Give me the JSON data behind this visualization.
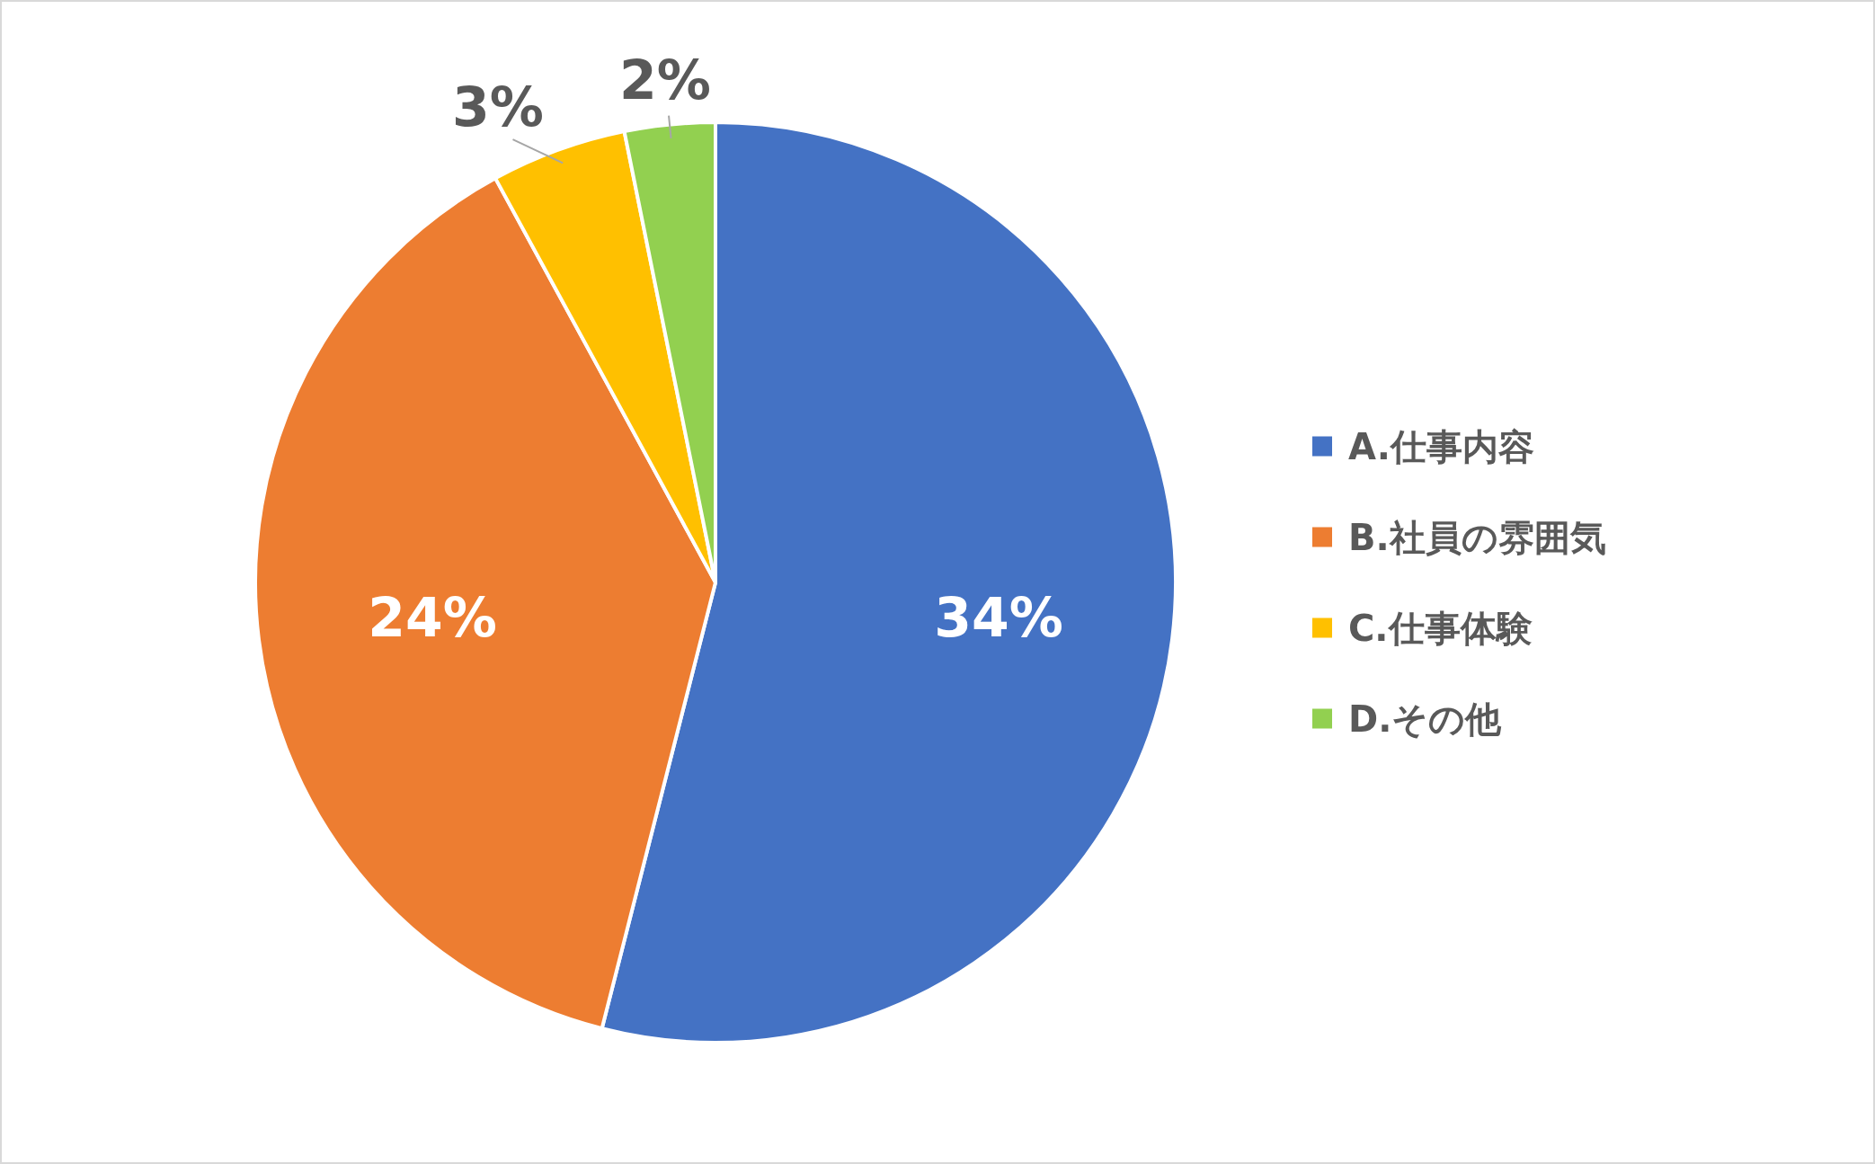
{
  "chart_data": {
    "type": "pie",
    "categories": [
      "A.仕事内容",
      "B.社員の雰囲気",
      "C.仕事体験",
      "D.その他"
    ],
    "values": [
      34,
      24,
      3,
      2
    ],
    "colors": [
      "#4472c4",
      "#ed7d31",
      "#ffc000",
      "#92d050"
    ],
    "value_labels": [
      "34%",
      "24%",
      "3%",
      "2%"
    ],
    "legend": "right"
  }
}
